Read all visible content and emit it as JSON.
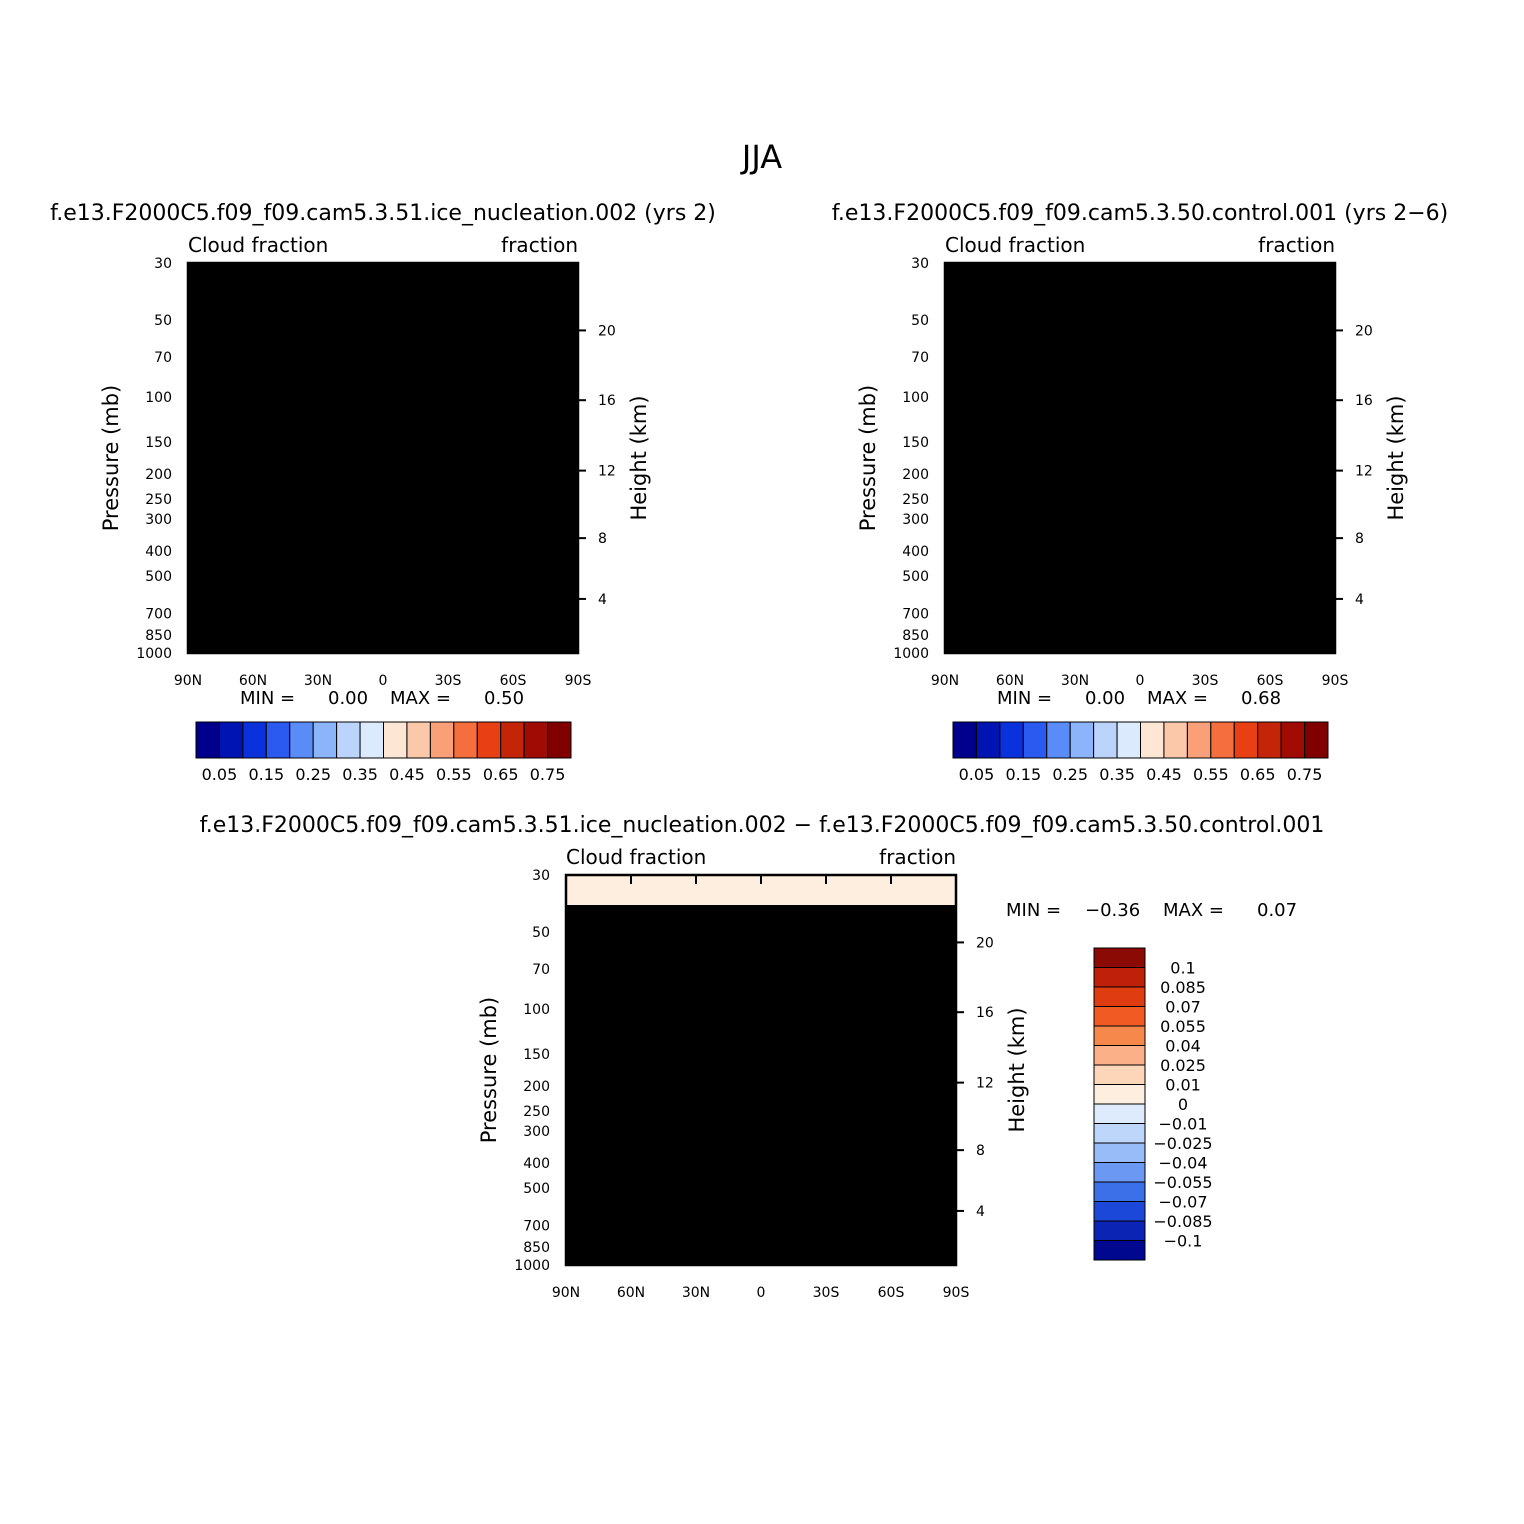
{
  "figure": {
    "title": "JJA"
  },
  "chart_data": [
    {
      "type": "heatmap",
      "panel": "case",
      "title": "f.e13.F2000C5.f09_f09.cam5.3.51.ice_nucleation.002 (yrs 2)",
      "subtitle_left": "Cloud fraction",
      "subtitle_right": "fraction",
      "xlabel": "",
      "ylabel": "Pressure (mb)",
      "ylabel_right": "Height (km)",
      "x_ticks": [
        "90N",
        "60N",
        "30N",
        "0",
        "30S",
        "60S",
        "90S"
      ],
      "x_values": [
        90,
        60,
        30,
        0,
        -30,
        -60,
        -90
      ],
      "y_ticks": [
        "30",
        "50",
        "70",
        "100",
        "150",
        "200",
        "250",
        "300",
        "400",
        "500",
        "700",
        "850",
        "1000"
      ],
      "y_values": [
        30,
        50,
        70,
        100,
        150,
        200,
        250,
        300,
        400,
        500,
        700,
        850,
        1000
      ],
      "y_right_ticks": [
        "20",
        "16",
        "12",
        "8",
        "4"
      ],
      "min_label": "MIN =",
      "min": "0.00",
      "max_label": "MAX =",
      "max": "0.50",
      "colorbar_labels": [
        "0.05",
        "0.15",
        "0.25",
        "0.35",
        "0.45",
        "0.55",
        "0.65",
        "0.75"
      ],
      "colorbar_colors": [
        "#00008c",
        "#0014b4",
        "#0a32dc",
        "#2a5af0",
        "#5a8cf8",
        "#8cb4fa",
        "#bcd4fc",
        "#dceafe",
        "#fde6d4",
        "#fcc8aa",
        "#f9a078",
        "#f56e3e",
        "#e84014",
        "#c42408",
        "#a00c04",
        "#800000"
      ],
      "clim": [
        0,
        0.8
      ]
    },
    {
      "type": "heatmap",
      "panel": "control",
      "title": "f.e13.F2000C5.f09_f09.cam5.3.50.control.001 (yrs 2−6)",
      "subtitle_left": "Cloud fraction",
      "subtitle_right": "fraction",
      "xlabel": "",
      "ylabel": "Pressure (mb)",
      "ylabel_right": "Height (km)",
      "x_ticks": [
        "90N",
        "60N",
        "30N",
        "0",
        "30S",
        "60S",
        "90S"
      ],
      "x_values": [
        90,
        60,
        30,
        0,
        -30,
        -60,
        -90
      ],
      "y_ticks": [
        "30",
        "50",
        "70",
        "100",
        "150",
        "200",
        "250",
        "300",
        "400",
        "500",
        "700",
        "850",
        "1000"
      ],
      "y_values": [
        30,
        50,
        70,
        100,
        150,
        200,
        250,
        300,
        400,
        500,
        700,
        850,
        1000
      ],
      "y_right_ticks": [
        "20",
        "16",
        "12",
        "8",
        "4"
      ],
      "min_label": "MIN =",
      "min": "0.00",
      "max_label": "MAX =",
      "max": "0.68",
      "colorbar_labels": [
        "0.05",
        "0.15",
        "0.25",
        "0.35",
        "0.45",
        "0.55",
        "0.65",
        "0.75"
      ],
      "colorbar_colors": [
        "#00008c",
        "#0014b4",
        "#0a32dc",
        "#2a5af0",
        "#5a8cf8",
        "#8cb4fa",
        "#bcd4fc",
        "#dceafe",
        "#fde6d4",
        "#fcc8aa",
        "#f9a078",
        "#f56e3e",
        "#e84014",
        "#c42408",
        "#a00c04",
        "#800000"
      ],
      "clim": [
        0,
        0.8
      ]
    },
    {
      "type": "heatmap",
      "panel": "difference",
      "title": "f.e13.F2000C5.f09_f09.cam5.3.51.ice_nucleation.002 − f.e13.F2000C5.f09_f09.cam5.3.50.control.001",
      "subtitle_left": "Cloud fraction",
      "subtitle_right": "fraction",
      "xlabel": "",
      "ylabel": "Pressure (mb)",
      "ylabel_right": "Height (km)",
      "x_ticks": [
        "90N",
        "60N",
        "30N",
        "0",
        "30S",
        "60S",
        "90S"
      ],
      "x_values": [
        90,
        60,
        30,
        0,
        -30,
        -60,
        -90
      ],
      "y_ticks": [
        "30",
        "50",
        "70",
        "100",
        "150",
        "200",
        "250",
        "300",
        "400",
        "500",
        "700",
        "850",
        "1000"
      ],
      "y_values": [
        30,
        50,
        70,
        100,
        150,
        200,
        250,
        300,
        400,
        500,
        700,
        850,
        1000
      ],
      "y_right_ticks": [
        "20",
        "16",
        "12",
        "8",
        "4"
      ],
      "min_label": "MIN =",
      "min": "−0.36",
      "max_label": "MAX =",
      "max": "0.07",
      "colorbar_labels": [
        "0.1",
        "0.085",
        "0.07",
        "0.055",
        "0.04",
        "0.025",
        "0.01",
        "0",
        "−0.01",
        "−0.025",
        "−0.04",
        "−0.055",
        "−0.07",
        "−0.085",
        "−0.1"
      ],
      "colorbar_colors": [
        "#8c0a04",
        "#be200a",
        "#e03c12",
        "#f25a24",
        "#f7884c",
        "#fbb088",
        "#fdd6ba",
        "#fdeedf",
        "#deebfc",
        "#bfd6fb",
        "#98bcf8",
        "#6a98f2",
        "#3c70e8",
        "#1c48da",
        "#0c24b4",
        "#000890"
      ],
      "clim": [
        -0.11,
        0.11
      ]
    }
  ]
}
